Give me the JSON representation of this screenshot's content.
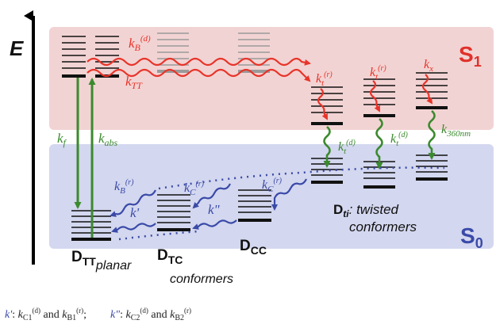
{
  "axis": {
    "energy_label": "E"
  },
  "states": {
    "s1": "S",
    "s1_sub": "1",
    "s0": "S",
    "s0_sub": "0"
  },
  "species": {
    "dtt": {
      "main": "D",
      "sub": "TT",
      "desc": "planar"
    },
    "dtc": {
      "main": "D",
      "sub": "TC",
      "desc": "conformers"
    },
    "dcc": {
      "main": "D",
      "sub": "CC"
    },
    "dti": {
      "main": "D",
      "sub": "ti",
      "desc1": ": twisted",
      "desc2": "conformers"
    }
  },
  "rates": {
    "kB_d": {
      "k": "k",
      "sub": "B",
      "sup": "(d)"
    },
    "kTT": {
      "k": "k",
      "sub": "TT"
    },
    "kt_r_1": {
      "k": "k",
      "sub": "t",
      "sup": "(r)"
    },
    "kt_r_2": {
      "k": "k",
      "sub": "t",
      "sup": "(r)"
    },
    "kx": {
      "k": "k",
      "sub": "x"
    },
    "kt_d_1": {
      "k": "k",
      "sub": "t",
      "sup": "(d)"
    },
    "kt_d_2": {
      "k": "k",
      "sub": "t",
      "sup": "(d)"
    },
    "k360": {
      "k": "k",
      "sub": "360nm"
    },
    "kf": {
      "k": "k",
      "sub": "f"
    },
    "kabs": {
      "k": "k",
      "sub": "abs"
    },
    "kB_r": {
      "k": "k",
      "sub": "B",
      "sup": "(r)"
    },
    "kC_r_1": {
      "k": "k",
      "sub": "C",
      "sup": "(r)"
    },
    "kC_r_2": {
      "k": "k",
      "sub": "C",
      "sup": "(r)"
    },
    "kprime": {
      "k": "k'"
    },
    "kdprime": {
      "k": "k\""
    }
  },
  "footnote": {
    "k1": "k'",
    "k1_colon": ": ",
    "k1_a": "k",
    "k1_a_sub": "C1",
    "k1_a_sup": "(d)",
    "and": " and ",
    "k1_b": "k",
    "k1_b_sub": "B1",
    "k1_b_sup": "(r)",
    "semi": ";",
    "k2": "k\"",
    "k2_colon": ": ",
    "k2_a": "k",
    "k2_a_sub": "C2",
    "k2_a_sup": "(d)",
    "and2": " and ",
    "k2_b": "k",
    "k2_b_sub": "B2",
    "k2_b_sup": "(r)"
  },
  "colors": {
    "s1_band": "#f2d3d3",
    "s0_band": "#d3d7ef",
    "red": "#e8342a",
    "green": "#3b8a2e",
    "blue": "#3a4aa8",
    "s1_text": "#e0302a",
    "s0_text": "#3a4aa8"
  }
}
